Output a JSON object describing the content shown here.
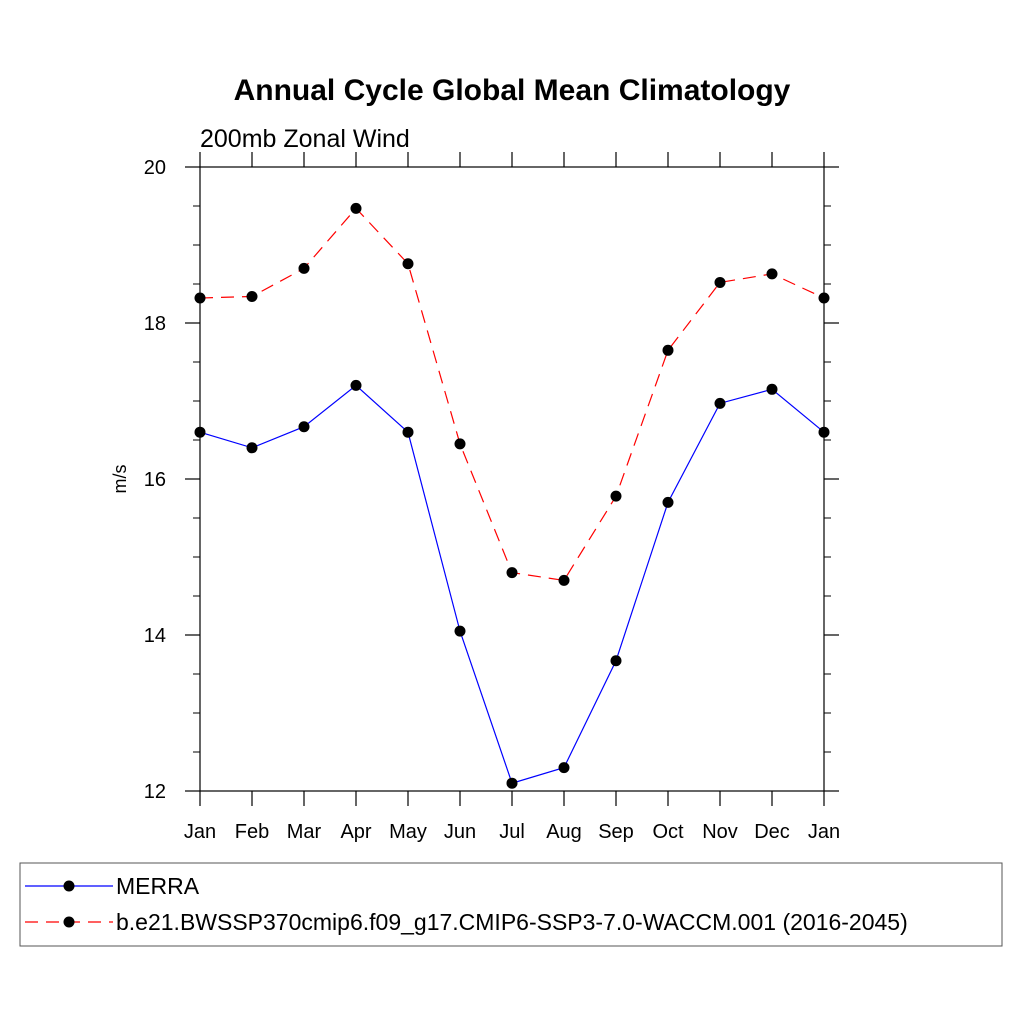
{
  "chart_data": {
    "type": "line",
    "title": "Annual Cycle Global Mean Climatology",
    "subtitle": "200mb Zonal Wind",
    "xlabel": "",
    "ylabel": "m/s",
    "categories": [
      "Jan",
      "Feb",
      "Mar",
      "Apr",
      "May",
      "Jun",
      "Jul",
      "Aug",
      "Sep",
      "Oct",
      "Nov",
      "Dec",
      "Jan"
    ],
    "ylim": [
      12,
      20
    ],
    "yticks": [
      12,
      14,
      16,
      18,
      20
    ],
    "yminor_step": 0.5,
    "grid": false,
    "legend_position": "bottom",
    "series": [
      {
        "name": "MERRA",
        "color": "#0000ff",
        "dash": "solid",
        "marker": "circle",
        "values": [
          16.6,
          16.4,
          16.67,
          17.2,
          16.6,
          14.05,
          12.1,
          12.3,
          13.67,
          15.7,
          16.97,
          17.15,
          16.6
        ]
      },
      {
        "name": "b.e21.BWSSP370cmip6.f09_g17.CMIP6-SSP3-7.0-WACCM.001 (2016-2045)",
        "color": "#ff0000",
        "dash": "dashed",
        "marker": "circle",
        "values": [
          18.32,
          18.34,
          18.7,
          19.47,
          18.76,
          16.45,
          14.8,
          14.7,
          15.78,
          17.65,
          18.52,
          18.63,
          18.32
        ]
      }
    ]
  }
}
